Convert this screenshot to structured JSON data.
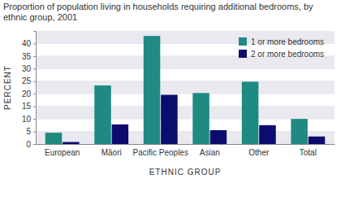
{
  "chart_data": {
    "type": "bar",
    "title": "Proportion of population living in households requiring additional bedrooms, by ethnic group, 2001",
    "x_label": "ETHNIC GROUP",
    "y_label": "PERCENT",
    "categories": [
      "European",
      "Māori",
      "Pacific Peoples",
      "Asian",
      "Other",
      "Total"
    ],
    "series": [
      {
        "name": "1 or more bedrooms",
        "color": "#1f8a82",
        "values": [
          4.5,
          23.3,
          43,
          20.3,
          24.8,
          10
        ]
      },
      {
        "name": "2 or more bedrooms",
        "color": "#0c0c6e",
        "values": [
          0.8,
          7.8,
          19.6,
          5.5,
          7.5,
          3
        ]
      }
    ],
    "ylim": [
      0,
      45
    ],
    "yticks": [
      0,
      5,
      10,
      15,
      20,
      25,
      30,
      35,
      40
    ],
    "grid": true,
    "legend": "upper right"
  }
}
